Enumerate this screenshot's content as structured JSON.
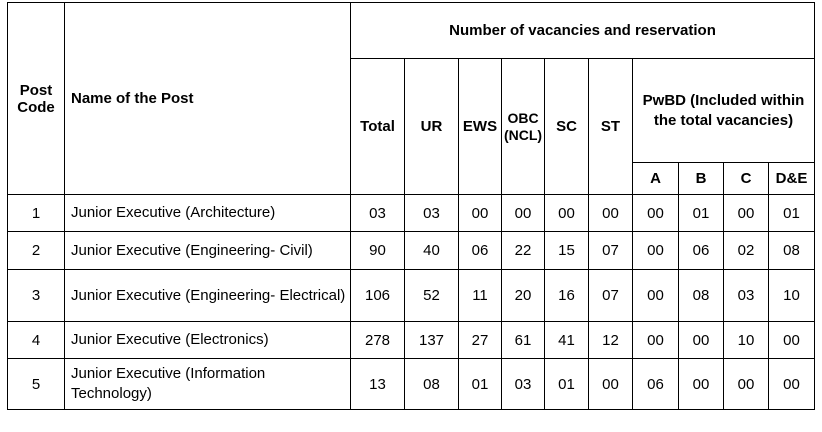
{
  "headers": {
    "post_code": "Post Code",
    "post_name": "Name of the Post",
    "group": "Number of vacancies and reservation",
    "total": "Total",
    "ur": "UR",
    "ews": "EWS",
    "obc": "OBC (NCL)",
    "sc": "SC",
    "st": "ST",
    "pwbd": "PwBD (Included within the total vacancies)",
    "pwbd_a": "A",
    "pwbd_b": "B",
    "pwbd_c": "C",
    "pwbd_de": "D&E"
  },
  "rows": [
    {
      "code": "1",
      "name": "Junior Executive (Architecture)",
      "total": "03",
      "ur": "03",
      "ews": "00",
      "obc": "00",
      "sc": "00",
      "st": "00",
      "a": "00",
      "b": "01",
      "c": "00",
      "de": "01"
    },
    {
      "code": "2",
      "name": "Junior Executive (Engineering- Civil)",
      "total": "90",
      "ur": "40",
      "ews": "06",
      "obc": "22",
      "sc": "15",
      "st": "07",
      "a": "00",
      "b": "06",
      "c": "02",
      "de": "08"
    },
    {
      "code": "3",
      "name": "Junior Executive (Engineering- Electrical)",
      "total": "106",
      "ur": "52",
      "ews": "11",
      "obc": "20",
      "sc": "16",
      "st": "07",
      "a": "00",
      "b": "08",
      "c": "03",
      "de": "10"
    },
    {
      "code": "4",
      "name": "Junior Executive (Electronics)",
      "total": "278",
      "ur": "137",
      "ews": "27",
      "obc": "61",
      "sc": "41",
      "st": "12",
      "a": "00",
      "b": "00",
      "c": "10",
      "de": "00"
    },
    {
      "code": "5",
      "name": "Junior Executive (Information Technology)",
      "total": "13",
      "ur": "08",
      "ews": "01",
      "obc": "03",
      "sc": "01",
      "st": "00",
      "a": "06",
      "b": "00",
      "c": "00",
      "de": "00"
    }
  ]
}
